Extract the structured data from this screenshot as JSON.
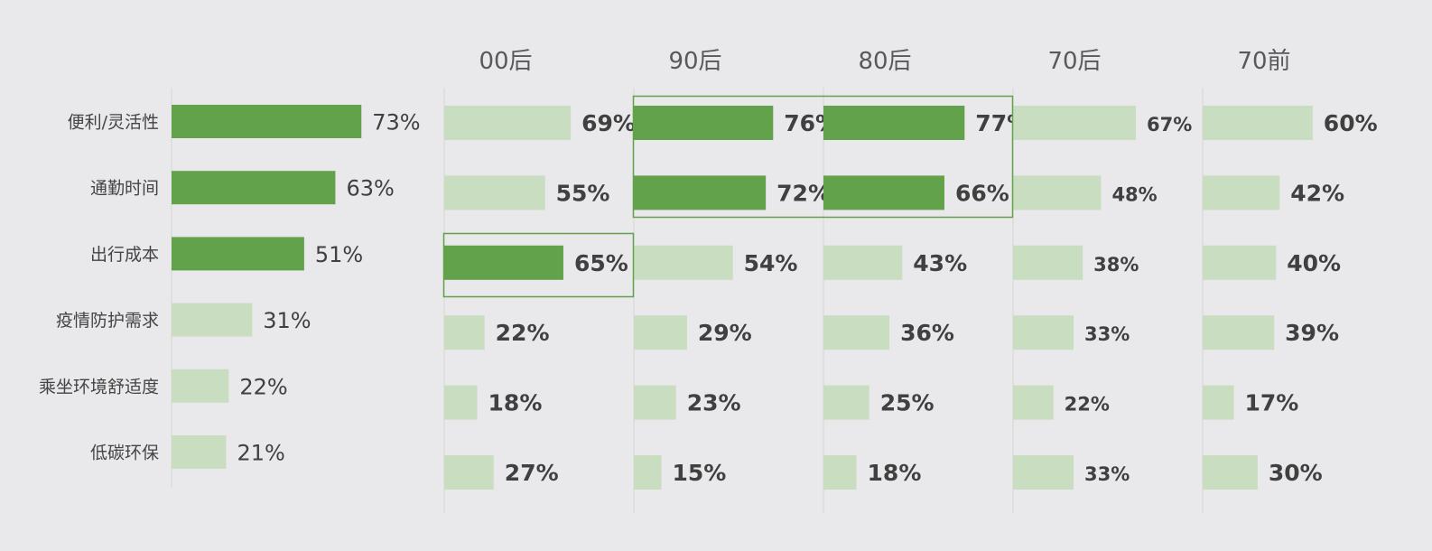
{
  "colors": {
    "background": "#e9e8ea",
    "highlight": "#62a24a",
    "normal": "#c9ddc1",
    "text": "#404040",
    "axis": "#d6d6d6",
    "box": "#62a24a"
  },
  "chart_data": [
    {
      "type": "bar",
      "orientation": "horizontal",
      "title": "",
      "categories": [
        "便利/灵活性",
        "通勤时间",
        "出行成本",
        "疫情防护需求",
        "乘坐环境舒适度",
        "低碳环保"
      ],
      "values": [
        73,
        63,
        51,
        31,
        22,
        21
      ],
      "value_labels": [
        "73%",
        "63%",
        "51%",
        "31%",
        "22%",
        "21%"
      ],
      "highlight": [
        true,
        true,
        true,
        false,
        false,
        false
      ],
      "unit": "%"
    },
    {
      "type": "bar",
      "orientation": "horizontal",
      "title": "00后",
      "categories": [
        "便利/灵活性",
        "通勤时间",
        "出行成本",
        "疫情防护需求",
        "乘坐环境舒适度",
        "低碳环保"
      ],
      "values": [
        69,
        55,
        65,
        22,
        18,
        27
      ],
      "value_labels": [
        "69%",
        "55%",
        "65%",
        "22%",
        "18%",
        "27%"
      ],
      "highlight": [
        false,
        false,
        true,
        false,
        false,
        false
      ],
      "unit": "%"
    },
    {
      "type": "bar",
      "orientation": "horizontal",
      "title": "90后",
      "categories": [
        "便利/灵活性",
        "通勤时间",
        "出行成本",
        "疫情防护需求",
        "乘坐环境舒适度",
        "低碳环保"
      ],
      "values": [
        76,
        72,
        54,
        29,
        23,
        15
      ],
      "value_labels": [
        "76%",
        "72%",
        "54%",
        "29%",
        "23%",
        "15%"
      ],
      "highlight": [
        true,
        true,
        false,
        false,
        false,
        false
      ],
      "unit": "%"
    },
    {
      "type": "bar",
      "orientation": "horizontal",
      "title": "80后",
      "categories": [
        "便利/灵活性",
        "通勤时间",
        "出行成本",
        "疫情防护需求",
        "乘坐环境舒适度",
        "低碳环保"
      ],
      "values": [
        77,
        66,
        43,
        36,
        25,
        18
      ],
      "value_labels": [
        "77%",
        "66%",
        "43%",
        "36%",
        "25%",
        "18%"
      ],
      "highlight": [
        true,
        true,
        false,
        false,
        false,
        false
      ],
      "unit": "%"
    },
    {
      "type": "bar",
      "orientation": "horizontal",
      "title": "70后",
      "categories": [
        "便利/灵活性",
        "通勤时间",
        "出行成本",
        "疫情防护需求",
        "乘坐环境舒适度",
        "低碳环保"
      ],
      "values": [
        67,
        48,
        38,
        33,
        22,
        33
      ],
      "value_labels": [
        "67%",
        "48%",
        "38%",
        "33%",
        "22%",
        "33%"
      ],
      "highlight": [
        false,
        false,
        false,
        false,
        false,
        false
      ],
      "unit": "%"
    },
    {
      "type": "bar",
      "orientation": "horizontal",
      "title": "70前",
      "categories": [
        "便利/灵活性",
        "通勤时间",
        "出行成本",
        "疫情防护需求",
        "乘坐环境舒适度",
        "低碳环保"
      ],
      "values": [
        60,
        42,
        40,
        39,
        17,
        30
      ],
      "value_labels": [
        "60%",
        "42%",
        "40%",
        "39%",
        "17%",
        "30%"
      ],
      "highlight": [
        false,
        false,
        false,
        false,
        false,
        false
      ],
      "unit": "%"
    }
  ]
}
